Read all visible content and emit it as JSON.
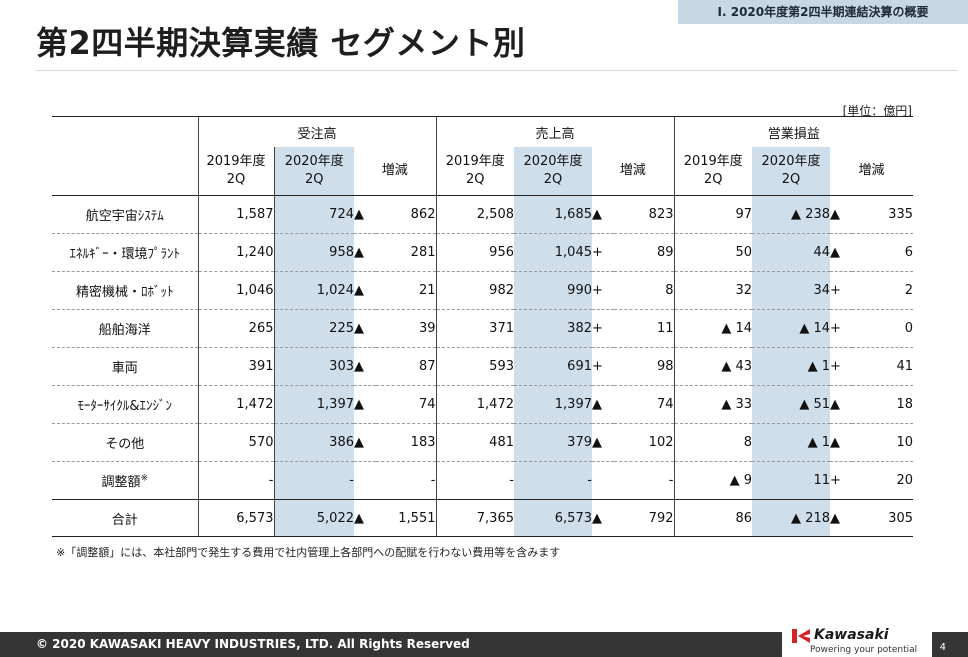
{
  "section_tag": "Ⅰ. 2020年度第2四半期連結決算の概要",
  "title": "第2四半期決算実績 セグメント別",
  "unit": "[単位：億円]",
  "groups": [
    "受注高",
    "売上高",
    "営業損益"
  ],
  "subheaders": {
    "prev": "2019年度 2Q",
    "prev_l1": "2019年度",
    "prev_l2": "2Q",
    "curr_l1": "2020年度",
    "curr_l2": "2Q",
    "diff": "増減"
  },
  "rows": [
    {
      "name": "航空宇宙ｼｽﾃﾑ",
      "orders": [
        "1,587",
        "724",
        "▲",
        "862"
      ],
      "sales": [
        "2,508",
        "1,685",
        "▲",
        "823"
      ],
      "profit": [
        "97",
        "▲ 238",
        "▲",
        "335"
      ]
    },
    {
      "name": "ｴﾈﾙｷﾞｰ・環境ﾌﾟﾗﾝﾄ",
      "orders": [
        "1,240",
        "958",
        "▲",
        "281"
      ],
      "sales": [
        "956",
        "1,045",
        "+",
        "89"
      ],
      "profit": [
        "50",
        "44",
        "▲",
        "6"
      ]
    },
    {
      "name": "精密機械・ﾛﾎﾞｯﾄ",
      "orders": [
        "1,046",
        "1,024",
        "▲",
        "21"
      ],
      "sales": [
        "982",
        "990",
        "+",
        "8"
      ],
      "profit": [
        "32",
        "34",
        "+",
        "2"
      ]
    },
    {
      "name": "船舶海洋",
      "orders": [
        "265",
        "225",
        "▲",
        "39"
      ],
      "sales": [
        "371",
        "382",
        "+",
        "11"
      ],
      "profit": [
        "▲ 14",
        "▲ 14",
        "+",
        "0"
      ]
    },
    {
      "name": "車両",
      "orders": [
        "391",
        "303",
        "▲",
        "87"
      ],
      "sales": [
        "593",
        "691",
        "+",
        "98"
      ],
      "profit": [
        "▲ 43",
        "▲ 1",
        "+",
        "41"
      ]
    },
    {
      "name": "ﾓｰﾀｰｻｲｸﾙ&ｴﾝｼﾞﾝ",
      "orders": [
        "1,472",
        "1,397",
        "▲",
        "74"
      ],
      "sales": [
        "1,472",
        "1,397",
        "▲",
        "74"
      ],
      "profit": [
        "▲ 33",
        "▲ 51",
        "▲",
        "18"
      ]
    },
    {
      "name": "その他",
      "orders": [
        "570",
        "386",
        "▲",
        "183"
      ],
      "sales": [
        "481",
        "379",
        "▲",
        "102"
      ],
      "profit": [
        "8",
        "▲ 1",
        "▲",
        "10"
      ]
    },
    {
      "name": "調整額",
      "sup": "※",
      "orders": [
        "-",
        "-",
        "",
        "-"
      ],
      "sales": [
        "-",
        "-",
        "",
        "-"
      ],
      "profit": [
        "▲ 9",
        "11",
        "+",
        "20"
      ]
    }
  ],
  "total": {
    "name": "合計",
    "orders": [
      "6,573",
      "5,022",
      "▲",
      "1,551"
    ],
    "sales": [
      "7,365",
      "6,573",
      "▲",
      "792"
    ],
    "profit": [
      "86",
      "▲ 218",
      "▲",
      "305"
    ]
  },
  "note": "※「調整額」には、本社部門で発生する費用で社内管理上各部門への配賦を行わない費用等を含みます",
  "footer": {
    "copyright": "© 2020 KAWASAKI HEAVY INDUSTRIES, LTD. All Rights Reserved",
    "logo_text": "Kawasaki",
    "tagline": "Powering your potential",
    "page": "4"
  },
  "colors": {
    "highlight": "#cfdeeb",
    "tag_bg": "#c8d7e6",
    "footer_bg": "#353535"
  }
}
